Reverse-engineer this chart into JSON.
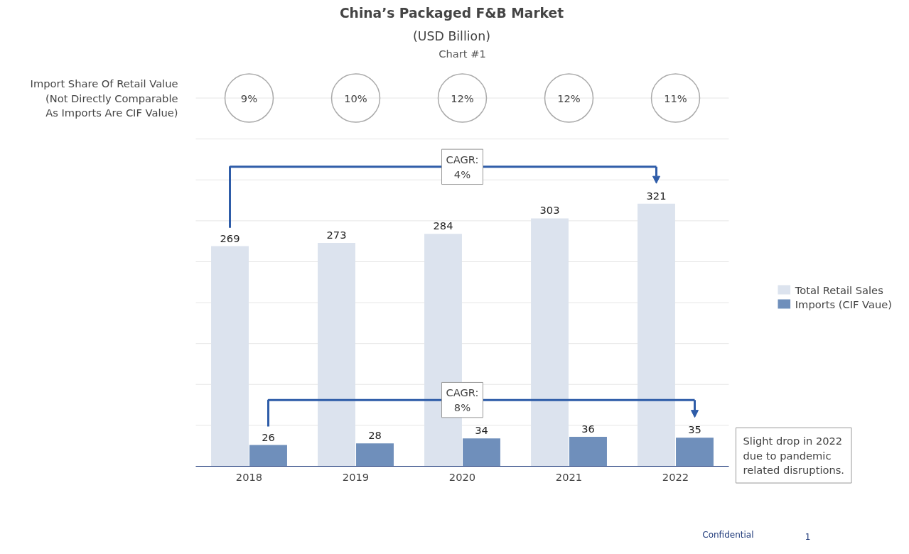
{
  "chart_data": {
    "type": "bar",
    "title": "China’s Packaged F&B Market",
    "subtitle": "(USD Billion)",
    "categories": [
      "2018",
      "2019",
      "2020",
      "2021",
      "2022"
    ],
    "series": [
      {
        "name": "Total Retail Sales",
        "color": "#dce3ee",
        "values": [
          269,
          273,
          284,
          303,
          321
        ]
      },
      {
        "name": "Imports (CIF Vaue)",
        "color": "#6f8fbb",
        "values": [
          26,
          28,
          34,
          36,
          35
        ]
      }
    ],
    "yticks": [
      {
        "value": 0,
        "label": null
      },
      {
        "value": 50,
        "label": null
      },
      {
        "value": 100,
        "label": null
      },
      {
        "value": 150,
        "label": null
      },
      {
        "value": 200,
        "label": null
      },
      {
        "value": 250,
        "label": null
      },
      {
        "value": 300,
        "label": null
      },
      {
        "value": 350,
        "label": null
      },
      {
        "value": 400,
        "label": null
      },
      {
        "value": 450,
        "label": null
      }
    ],
    "grid": "y",
    "tick_labels": "x",
    "data_labels": true,
    "legend": "right",
    "annotations": [
      "Import Share Of Retail Value\n(Not Directly Comparable\nAs Imports Are CIF Value)",
      "9%",
      "10%",
      "12%",
      "12%",
      "11%",
      "CAGR:\n4%",
      "CAGR:\n8%",
      "Slight drop in 2022\ndue to pandemic\nrelated disruptions.",
      "Chart #1",
      "Confidential",
      "1"
    ]
  }
}
